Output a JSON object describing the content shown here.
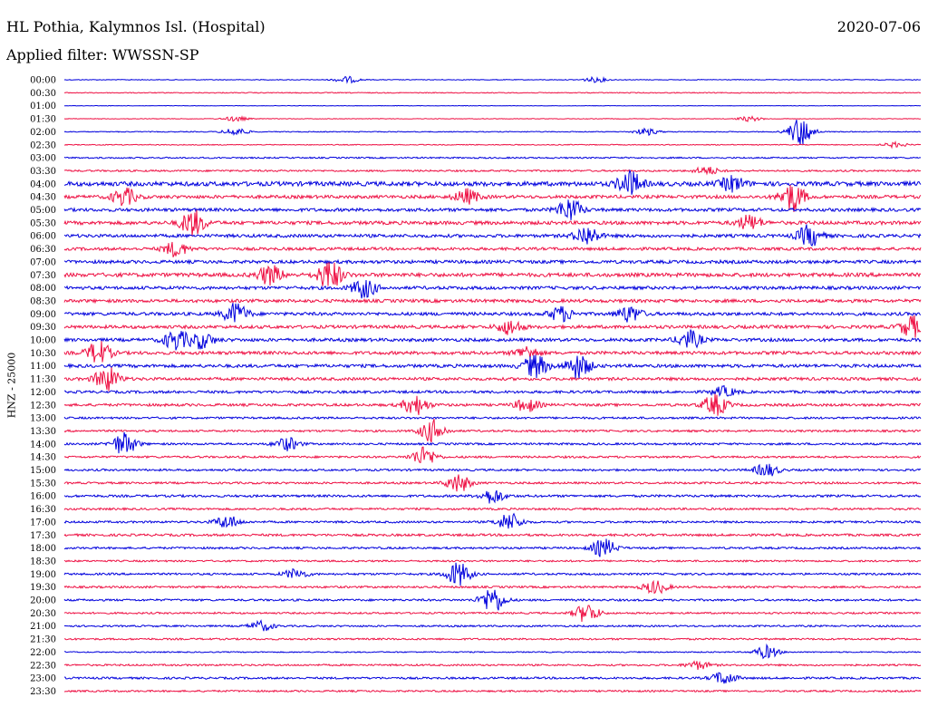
{
  "header": {
    "station": "HL Pothia, Kalymnos Isl. (Hospital)",
    "date": "2020-07-06",
    "filter": "Applied filter: WWSSN-SP"
  },
  "y_axis_label": "HNZ - 25000",
  "colors": {
    "trace_a": "#0000dd",
    "trace_b": "#ee1144"
  },
  "chart_data": {
    "type": "line",
    "title": "HL Pothia, Kalymnos Isl. (Hospital)",
    "subtitle": "Applied filter: WWSSN-SP",
    "ylabel": "HNZ - 25000",
    "xlabel": "",
    "row_labels": [
      "00:00",
      "00:30",
      "01:00",
      "01:30",
      "02:00",
      "02:30",
      "03:00",
      "03:30",
      "04:00",
      "04:30",
      "05:00",
      "05:30",
      "06:00",
      "06:30",
      "07:00",
      "07:30",
      "08:00",
      "08:30",
      "09:00",
      "09:30",
      "10:00",
      "10:30",
      "11:00",
      "11:30",
      "12:00",
      "12:30",
      "13:00",
      "13:30",
      "14:00",
      "14:30",
      "15:00",
      "15:30",
      "16:00",
      "16:30",
      "17:00",
      "17:30",
      "18:00",
      "18:30",
      "19:00",
      "19:30",
      "20:00",
      "20:30",
      "21:00",
      "21:30",
      "22:00",
      "22:30",
      "23:00",
      "23:30"
    ],
    "row_colors_alternate": [
      "#0000dd",
      "#ee1144"
    ],
    "noise_level": [
      0.12,
      0.15,
      0.08,
      0.1,
      0.15,
      0.15,
      0.25,
      0.3,
      0.75,
      0.55,
      0.55,
      0.6,
      0.55,
      0.5,
      0.55,
      0.65,
      0.55,
      0.55,
      0.55,
      0.55,
      0.55,
      0.55,
      0.55,
      0.5,
      0.45,
      0.45,
      0.35,
      0.35,
      0.35,
      0.35,
      0.35,
      0.35,
      0.4,
      0.35,
      0.35,
      0.4,
      0.35,
      0.3,
      0.35,
      0.35,
      0.35,
      0.3,
      0.3,
      0.3,
      0.2,
      0.3,
      0.35,
      0.3
    ],
    "events": [
      {
        "row": 0,
        "x": 0.33,
        "amp": 0.4
      },
      {
        "row": 0,
        "x": 0.62,
        "amp": 0.3
      },
      {
        "row": 3,
        "x": 0.2,
        "amp": 0.3
      },
      {
        "row": 3,
        "x": 0.8,
        "amp": 0.3
      },
      {
        "row": 4,
        "x": 0.2,
        "amp": 0.5
      },
      {
        "row": 4,
        "x": 0.86,
        "amp": 1.8
      },
      {
        "row": 4,
        "x": 0.68,
        "amp": 0.4
      },
      {
        "row": 5,
        "x": 0.97,
        "amp": 0.3
      },
      {
        "row": 7,
        "x": 0.75,
        "amp": 0.5
      },
      {
        "row": 8,
        "x": 0.66,
        "amp": 1.5
      },
      {
        "row": 8,
        "x": 0.78,
        "amp": 0.9
      },
      {
        "row": 9,
        "x": 0.07,
        "amp": 1.1
      },
      {
        "row": 9,
        "x": 0.47,
        "amp": 0.9
      },
      {
        "row": 9,
        "x": 0.85,
        "amp": 1.8
      },
      {
        "row": 10,
        "x": 0.59,
        "amp": 1.4
      },
      {
        "row": 11,
        "x": 0.15,
        "amp": 1.6
      },
      {
        "row": 11,
        "x": 0.8,
        "amp": 0.9
      },
      {
        "row": 12,
        "x": 0.61,
        "amp": 1.2
      },
      {
        "row": 12,
        "x": 0.87,
        "amp": 1.3
      },
      {
        "row": 13,
        "x": 0.13,
        "amp": 0.9
      },
      {
        "row": 15,
        "x": 0.24,
        "amp": 1.2
      },
      {
        "row": 15,
        "x": 0.31,
        "amp": 1.8
      },
      {
        "row": 16,
        "x": 0.35,
        "amp": 1.2
      },
      {
        "row": 18,
        "x": 0.2,
        "amp": 1.3
      },
      {
        "row": 18,
        "x": 0.58,
        "amp": 0.9
      },
      {
        "row": 18,
        "x": 0.66,
        "amp": 1.0
      },
      {
        "row": 19,
        "x": 0.99,
        "amp": 1.3
      },
      {
        "row": 19,
        "x": 0.52,
        "amp": 0.9
      },
      {
        "row": 20,
        "x": 0.13,
        "amp": 1.2
      },
      {
        "row": 20,
        "x": 0.16,
        "amp": 1.0
      },
      {
        "row": 20,
        "x": 0.73,
        "amp": 1.1
      },
      {
        "row": 21,
        "x": 0.04,
        "amp": 1.4
      },
      {
        "row": 21,
        "x": 0.54,
        "amp": 0.8
      },
      {
        "row": 22,
        "x": 0.55,
        "amp": 1.4
      },
      {
        "row": 22,
        "x": 0.6,
        "amp": 1.5
      },
      {
        "row": 23,
        "x": 0.05,
        "amp": 1.5
      },
      {
        "row": 24,
        "x": 0.77,
        "amp": 0.6
      },
      {
        "row": 25,
        "x": 0.41,
        "amp": 1.2
      },
      {
        "row": 25,
        "x": 0.76,
        "amp": 1.3
      },
      {
        "row": 25,
        "x": 0.54,
        "amp": 0.8
      },
      {
        "row": 27,
        "x": 0.43,
        "amp": 1.4
      },
      {
        "row": 28,
        "x": 0.07,
        "amp": 1.4
      },
      {
        "row": 28,
        "x": 0.26,
        "amp": 0.8
      },
      {
        "row": 29,
        "x": 0.42,
        "amp": 1.2
      },
      {
        "row": 30,
        "x": 0.82,
        "amp": 0.8
      },
      {
        "row": 31,
        "x": 0.46,
        "amp": 1.1
      },
      {
        "row": 32,
        "x": 0.5,
        "amp": 0.9
      },
      {
        "row": 34,
        "x": 0.19,
        "amp": 0.8
      },
      {
        "row": 34,
        "x": 0.52,
        "amp": 1.1
      },
      {
        "row": 36,
        "x": 0.63,
        "amp": 1.1
      },
      {
        "row": 38,
        "x": 0.46,
        "amp": 1.5
      },
      {
        "row": 38,
        "x": 0.27,
        "amp": 0.6
      },
      {
        "row": 39,
        "x": 0.69,
        "amp": 0.8
      },
      {
        "row": 40,
        "x": 0.5,
        "amp": 1.6
      },
      {
        "row": 41,
        "x": 0.61,
        "amp": 1.2
      },
      {
        "row": 42,
        "x": 0.23,
        "amp": 0.6
      },
      {
        "row": 44,
        "x": 0.82,
        "amp": 0.8
      },
      {
        "row": 45,
        "x": 0.74,
        "amp": 0.5
      },
      {
        "row": 46,
        "x": 0.77,
        "amp": 0.8
      }
    ]
  }
}
